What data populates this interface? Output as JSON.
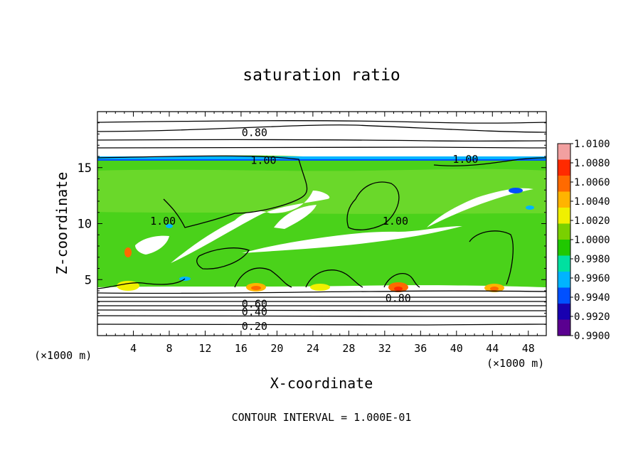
{
  "chart_data": {
    "type": "heatmap",
    "title": "saturation ratio",
    "xlabel": "X-coordinate",
    "ylabel": "Z-coordinate",
    "x_unit_left": "(×1000 m)",
    "x_unit_right": "(×1000 m)",
    "xlim": [
      0,
      50
    ],
    "ylim": [
      0,
      20
    ],
    "xticks": [
      4,
      8,
      12,
      16,
      20,
      24,
      28,
      32,
      36,
      40,
      44,
      48
    ],
    "yticks": [
      5,
      10,
      15
    ],
    "footer": "CONTOUR INTERVAL = 1.000E-01",
    "colorbar": {
      "labels": [
        "1.0100",
        "1.0080",
        "1.0060",
        "1.0040",
        "1.0020",
        "1.0000",
        "0.9980",
        "0.9960",
        "0.9940",
        "0.9920",
        "0.9900"
      ],
      "colors": [
        "#f2a0a0",
        "#ff2a00",
        "#ff6a00",
        "#ffb400",
        "#f0f000",
        "#7ad000",
        "#20c800",
        "#00e0a0",
        "#00b4ff",
        "#0050ff",
        "#1800b0",
        "#5a0090"
      ]
    },
    "contour_labels": [
      {
        "text": "0.80",
        "x": 17.5,
        "y": 18.2
      },
      {
        "text": "1.00",
        "x": 18.5,
        "y": 15.7
      },
      {
        "text": "1.00",
        "x": 41.0,
        "y": 15.8
      },
      {
        "text": "1.00",
        "x": 7.3,
        "y": 10.3
      },
      {
        "text": "1.00",
        "x": 33.2,
        "y": 10.3
      },
      {
        "text": "0.80",
        "x": 33.5,
        "y": 3.4
      },
      {
        "text": "0.60",
        "x": 17.5,
        "y": 2.9
      },
      {
        "text": "0.40",
        "x": 17.5,
        "y": 2.2
      },
      {
        "text": "0.20",
        "x": 17.5,
        "y": 0.9
      }
    ]
  }
}
